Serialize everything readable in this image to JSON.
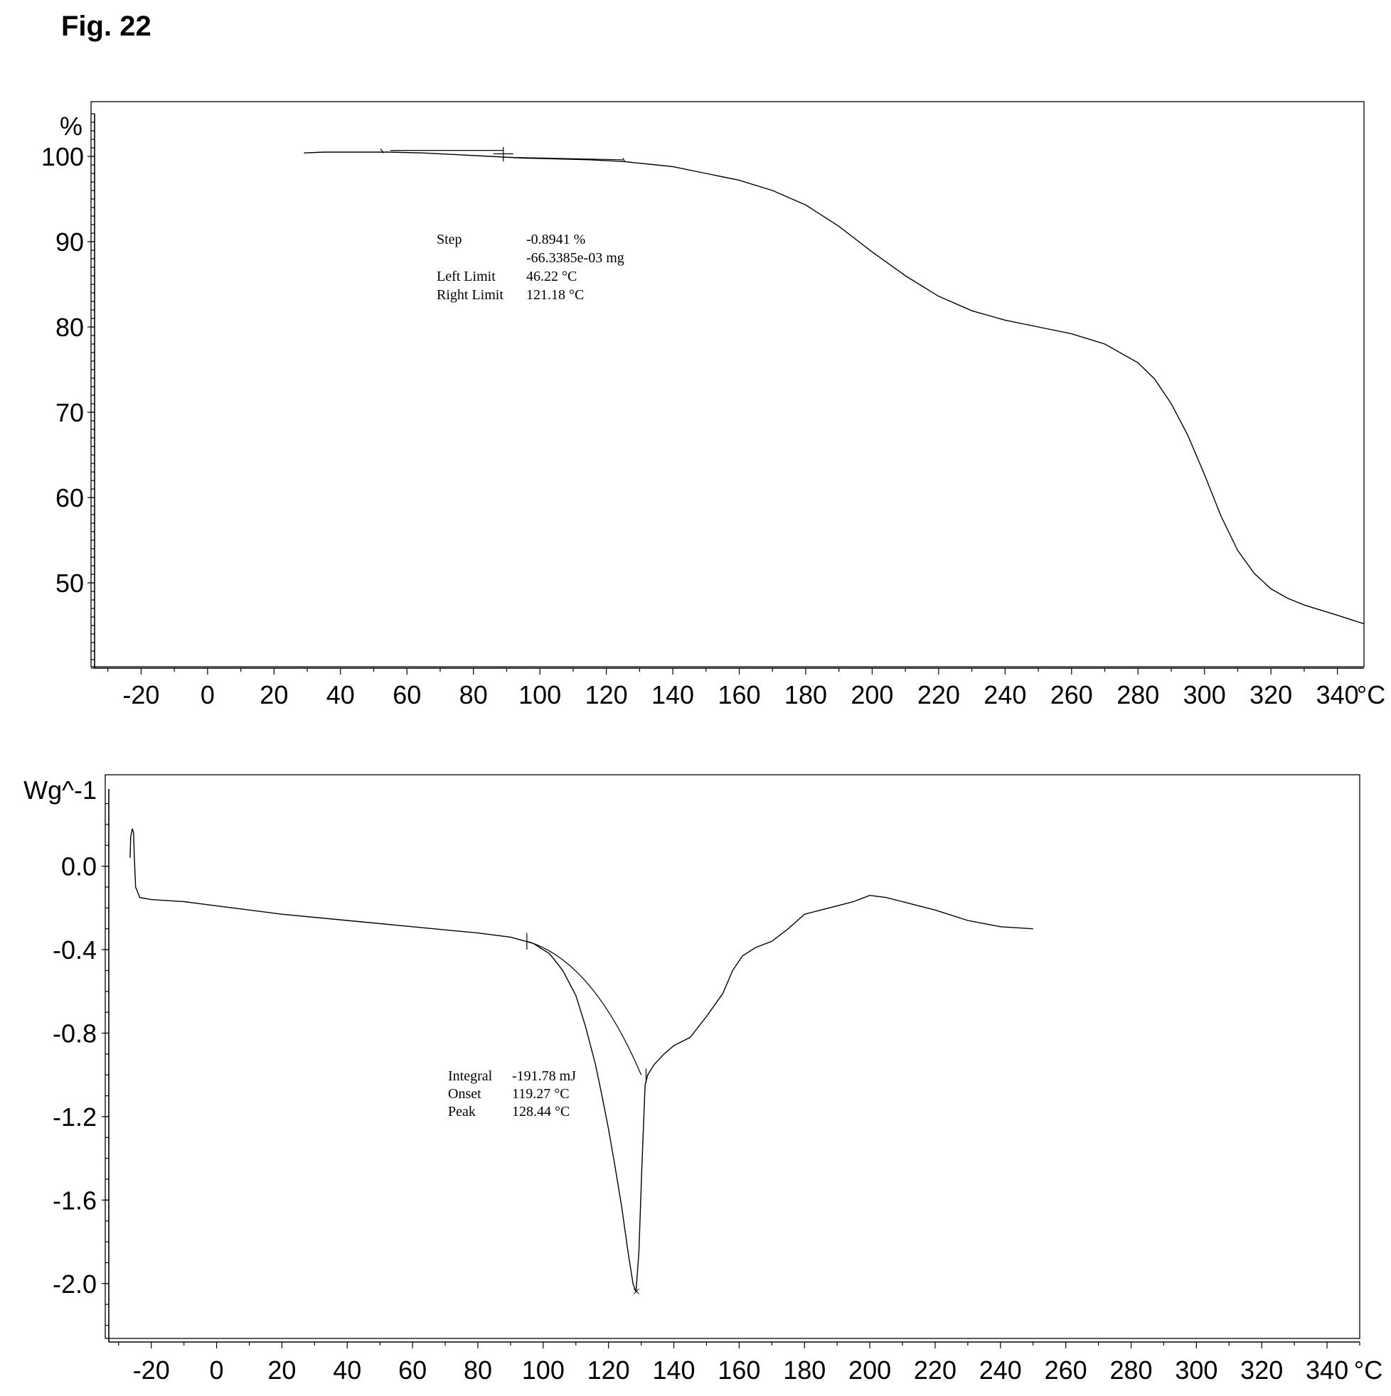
{
  "figure_label": "Fig. 22",
  "chart_data": [
    {
      "type": "line",
      "title": "",
      "xlabel": "",
      "ylabel": "",
      "x_unit": "°C",
      "y_unit": "%",
      "xlim": [
        -34,
        348
      ],
      "ylim": [
        40,
        105
      ],
      "xticks": [
        -20,
        0,
        20,
        40,
        60,
        80,
        100,
        120,
        140,
        160,
        180,
        200,
        220,
        240,
        260,
        280,
        300,
        320,
        340
      ],
      "yticks": [
        100,
        90,
        80,
        70,
        60,
        50
      ],
      "grid": false,
      "series": [
        {
          "x": [
            29,
            35,
            45,
            55,
            65,
            75,
            85,
            95,
            105,
            115,
            125,
            135,
            140,
            150,
            160,
            170,
            180,
            190,
            200,
            210,
            220,
            230,
            240,
            250,
            260,
            270,
            280,
            285,
            290,
            295,
            300,
            305,
            310,
            315,
            320,
            325,
            330,
            340,
            348
          ],
          "y": [
            100.4,
            100.5,
            100.5,
            100.5,
            100.4,
            100.2,
            100.0,
            99.8,
            99.7,
            99.6,
            99.4,
            99.0,
            98.8,
            98.0,
            97.2,
            96.0,
            94.3,
            91.8,
            88.8,
            86.0,
            83.6,
            81.9,
            80.8,
            80.0,
            79.2,
            78.0,
            75.8,
            73.9,
            71.0,
            67.3,
            62.7,
            57.8,
            53.8,
            51.1,
            49.3,
            48.2,
            47.4,
            46.2,
            45.2
          ]
        }
      ],
      "annotation": {
        "rows": [
          {
            "label": "Step",
            "value": "-0.8941 %"
          },
          {
            "label": "",
            "value": "-66.3385e-03 mg"
          },
          {
            "label": "Left Limit",
            "value": "46.22 °C"
          },
          {
            "label": "Right Limit",
            "value": "121.18 °C"
          }
        ]
      }
    },
    {
      "type": "line",
      "title": "",
      "xlabel": "",
      "ylabel": "",
      "x_unit": "°C",
      "y_unit": "Wg^-1",
      "xlim": [
        -33,
        350
      ],
      "ylim": [
        -2.28,
        0.37
      ],
      "xticks": [
        -20,
        0,
        20,
        40,
        60,
        80,
        100,
        120,
        140,
        160,
        180,
        200,
        220,
        240,
        260,
        280,
        300,
        320,
        340
      ],
      "yticks": [
        "0.0",
        "-0.4",
        "-0.8",
        "-1.2",
        "-1.6",
        "-2.0"
      ],
      "ytick_values": [
        0.0,
        -0.4,
        -0.8,
        -1.2,
        -1.6,
        -2.0
      ],
      "grid": false,
      "series": [
        {
          "x": [
            -26.5,
            -26.3,
            -25.8,
            -25.4,
            -25.2,
            -24.8,
            -23.5,
            -20,
            -10,
            0,
            20,
            40,
            60,
            80,
            90,
            97,
            102,
            106,
            110,
            113,
            116,
            118,
            120,
            122,
            124,
            126,
            127.5,
            128.4,
            129.3,
            130.2,
            131.2,
            132,
            134,
            137,
            140,
            145,
            150,
            155,
            158,
            161,
            165,
            170,
            175,
            180,
            185,
            190,
            195,
            200,
            205,
            210,
            220,
            230,
            240,
            250
          ],
          "y": [
            0.04,
            0.14,
            0.18,
            0.16,
            0.05,
            -0.1,
            -0.15,
            -0.16,
            -0.17,
            -0.19,
            -0.23,
            -0.26,
            -0.29,
            -0.32,
            -0.34,
            -0.37,
            -0.42,
            -0.5,
            -0.62,
            -0.77,
            -0.95,
            -1.1,
            -1.26,
            -1.44,
            -1.63,
            -1.85,
            -2.0,
            -2.04,
            -1.85,
            -1.45,
            -1.05,
            -1.0,
            -0.95,
            -0.9,
            -0.86,
            -0.82,
            -0.72,
            -0.61,
            -0.5,
            -0.43,
            -0.39,
            -0.36,
            -0.3,
            -0.23,
            -0.21,
            -0.19,
            -0.17,
            -0.14,
            -0.15,
            -0.17,
            -0.21,
            -0.26,
            -0.29,
            -0.3
          ]
        }
      ],
      "annotation": {
        "rows": [
          {
            "label": "Integral",
            "value": "-191.78 mJ"
          },
          {
            "label": "Onset",
            "value": "119.27 °C"
          },
          {
            "label": "Peak",
            "value": "128.44 °C"
          }
        ]
      }
    }
  ]
}
